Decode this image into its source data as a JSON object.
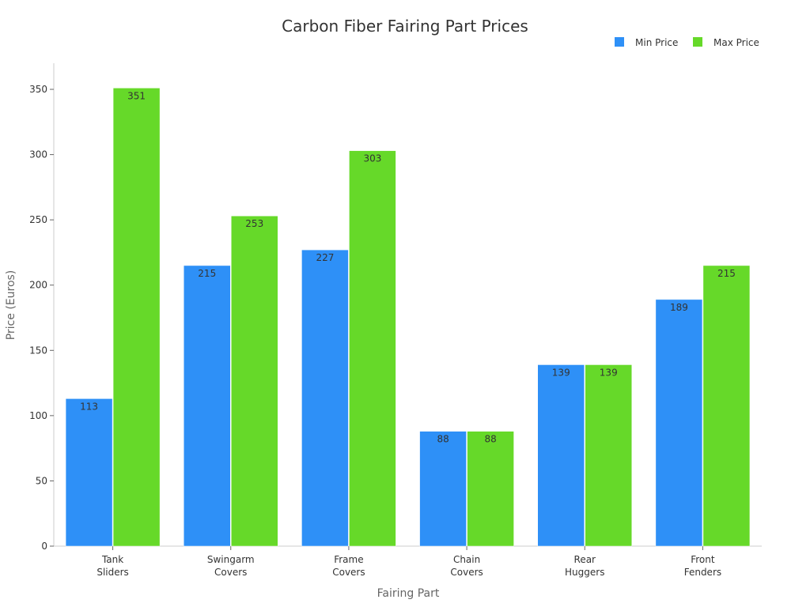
{
  "chart_data": {
    "type": "bar",
    "title": "Carbon Fiber Fairing Part Prices",
    "xlabel": "Fairing Part",
    "ylabel": "Price (Euros)",
    "categories": [
      [
        "Tank",
        "Sliders"
      ],
      [
        "Swingarm",
        "Covers"
      ],
      [
        "Frame",
        "Covers"
      ],
      [
        "Chain",
        "Covers"
      ],
      [
        "Rear",
        "Huggers"
      ],
      [
        "Front",
        "Fenders"
      ]
    ],
    "series": [
      {
        "name": "Min Price",
        "color": "#2e90f7",
        "values": [
          113,
          215,
          227,
          88,
          139,
          189
        ]
      },
      {
        "name": "Max Price",
        "color": "#66d929",
        "values": [
          351,
          253,
          303,
          88,
          139,
          215
        ]
      }
    ],
    "ylim": [
      0,
      370
    ],
    "yticks": [
      0,
      50,
      100,
      150,
      200,
      250,
      300,
      350
    ],
    "grid": false,
    "legend_position": "top-right"
  }
}
